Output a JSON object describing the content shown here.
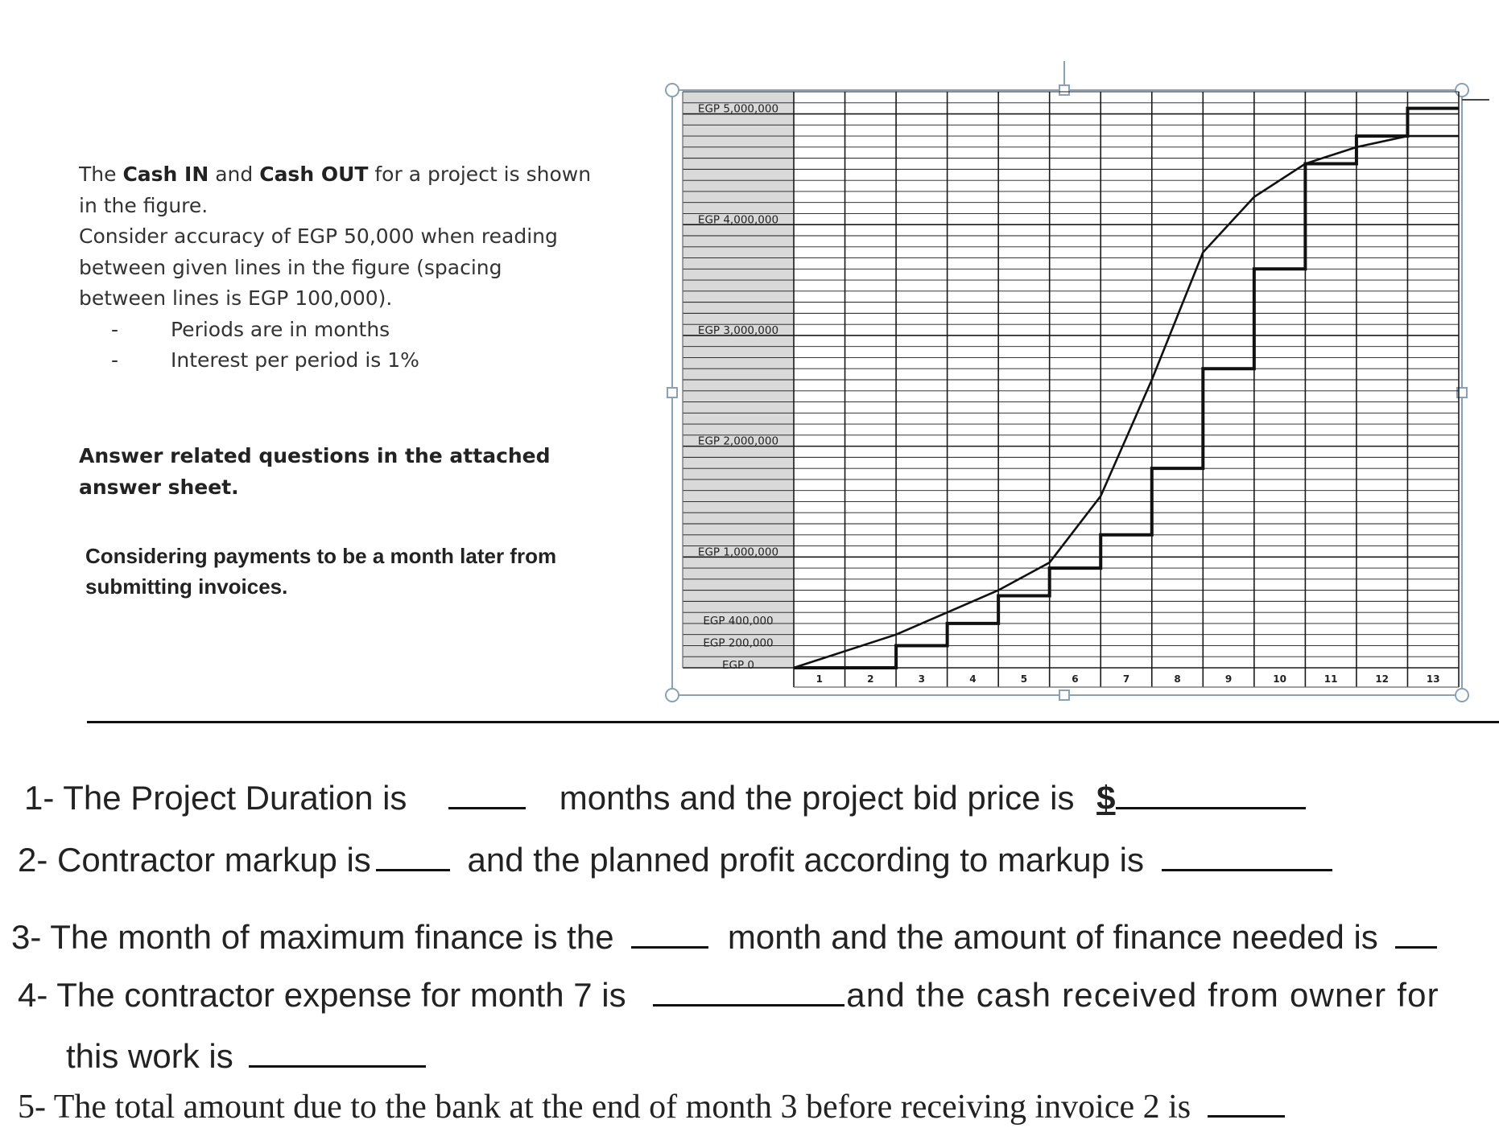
{
  "intro": {
    "line1_a": "The ",
    "line1_b": "Cash IN",
    "line1_c": " and ",
    "line1_d": "Cash OUT",
    "line1_e": " for a project is shown",
    "line2": "in the figure.",
    "line3": "Consider accuracy of EGP 50,000 when reading",
    "line4": "between given lines in the figure (spacing",
    "line5": "between lines is EGP 100,000).",
    "bullet_mark": "-",
    "bullet1": "Periods are in months",
    "bullet2": "Interest per period is 1%"
  },
  "answer_note": [
    "Answer related questions in the attached",
    "answer sheet."
  ],
  "considering_note": [
    "Considering payments to be a month later from",
    "submitting invoices."
  ],
  "chart_data": {
    "type": "line",
    "title": "",
    "xlabel": "",
    "ylabel": "",
    "x_categories": [
      "1",
      "2",
      "3",
      "4",
      "5",
      "6",
      "7",
      "8",
      "9",
      "10",
      "11",
      "12",
      "13"
    ],
    "y_tick_labels": [
      {
        "value": 5000000,
        "label": "EGP 5,000,000"
      },
      {
        "value": 4000000,
        "label": "EGP 4,000,000"
      },
      {
        "value": 3000000,
        "label": "EGP 3,000,000"
      },
      {
        "value": 2000000,
        "label": "EGP 2,000,000"
      },
      {
        "value": 1000000,
        "label": "EGP 1,000,000"
      },
      {
        "value": 400000,
        "label": "EGP 400,000"
      },
      {
        "value": 200000,
        "label": "EGP 200,000"
      },
      {
        "value": 0,
        "label": "EGP 0"
      }
    ],
    "ylim": [
      0,
      5200000
    ],
    "xlim": [
      0,
      13
    ],
    "gridline_spacing": 100000,
    "grid": true,
    "series": [
      {
        "style": "step",
        "points": [
          [
            0,
            0
          ],
          [
            2,
            0
          ],
          [
            2,
            200000
          ],
          [
            3,
            200000
          ],
          [
            3,
            400000
          ],
          [
            4,
            400000
          ],
          [
            4,
            650000
          ],
          [
            5,
            650000
          ],
          [
            5,
            900000
          ],
          [
            6,
            900000
          ],
          [
            6,
            1200000
          ],
          [
            7,
            1200000
          ],
          [
            7,
            1800000
          ],
          [
            8,
            1800000
          ],
          [
            8,
            2700000
          ],
          [
            9,
            2700000
          ],
          [
            9,
            3600000
          ],
          [
            10,
            3600000
          ],
          [
            10,
            4550000
          ],
          [
            11,
            4550000
          ],
          [
            11,
            4800000
          ],
          [
            12,
            4800000
          ],
          [
            12,
            5050000
          ],
          [
            13,
            5050000
          ]
        ]
      },
      {
        "style": "line",
        "points": [
          [
            0,
            0
          ],
          [
            2,
            300000
          ],
          [
            3,
            500000
          ],
          [
            4,
            700000
          ],
          [
            5,
            950000
          ],
          [
            6,
            1550000
          ],
          [
            7,
            2600000
          ],
          [
            8,
            3750000
          ],
          [
            9,
            4250000
          ],
          [
            10,
            4550000
          ],
          [
            11,
            4700000
          ],
          [
            12,
            4800000
          ],
          [
            13,
            4800000
          ]
        ]
      }
    ],
    "colors": {
      "lines": "#111111",
      "label_column": "#d9d9d9",
      "grid": "#1a1a1a"
    }
  },
  "questions": {
    "q1_a": "1- The Project Duration is",
    "q1_b": "months and the project bid price is",
    "q1_c": "$",
    "q2_a": "2- Contractor markup is",
    "q2_b": "and the planned profit according to markup is",
    "q3_a": "3- The month of maximum finance is the",
    "q3_b": "month and the amount of finance needed is",
    "q4_a": "4- The contractor expense for month 7 is",
    "q4_b": "and the cash received from owner for",
    "q4_c": "this work is",
    "q5": "5- The  total amount due to the bank at the end of month 3 before receiving invoice 2 is"
  }
}
